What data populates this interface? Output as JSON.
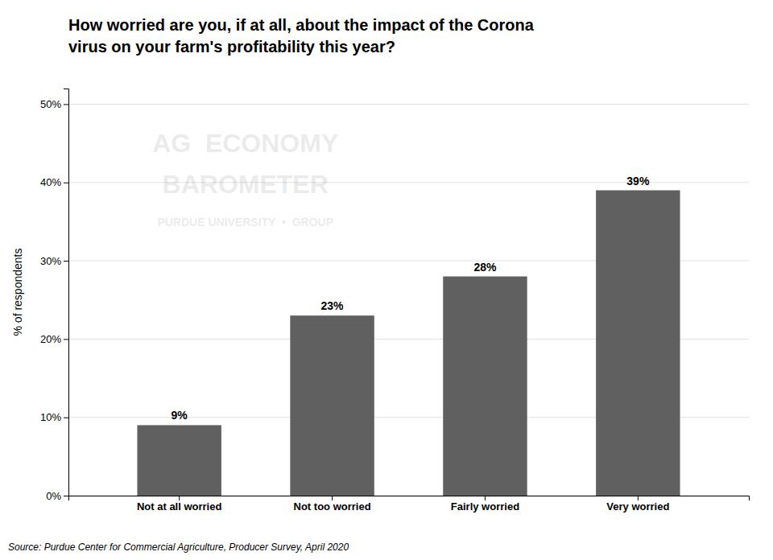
{
  "chart_data": {
    "type": "bar",
    "title": "How worried are you, if at all, about the impact of the Corona\nvirus on your farm's profitability this year?",
    "categories": [
      "Not at all worried",
      "Not too worried",
      "Fairly worried",
      "Very worried"
    ],
    "values": [
      9,
      23,
      28,
      39
    ],
    "value_labels": [
      "9%",
      "23%",
      "28%",
      "39%"
    ],
    "data_labels": true,
    "color": "#606060",
    "ylabel": "% of respondents",
    "ylim": [
      0,
      52
    ],
    "yticks": [
      {
        "value": 0,
        "label": "0%"
      },
      {
        "value": 10,
        "label": "10%"
      },
      {
        "value": 20,
        "label": "20%"
      },
      {
        "value": 30,
        "label": "30%"
      },
      {
        "value": 40,
        "label": "40%"
      },
      {
        "value": 50,
        "label": "50%"
      }
    ],
    "grid": true,
    "source": "Source: Purdue Center for Commercial Agriculture, Producer Survey, April 2020",
    "watermark": [
      "AG  ECONOMY",
      "BAROMETER",
      "PURDUE UNIVERSITY  •  GROUP"
    ]
  }
}
